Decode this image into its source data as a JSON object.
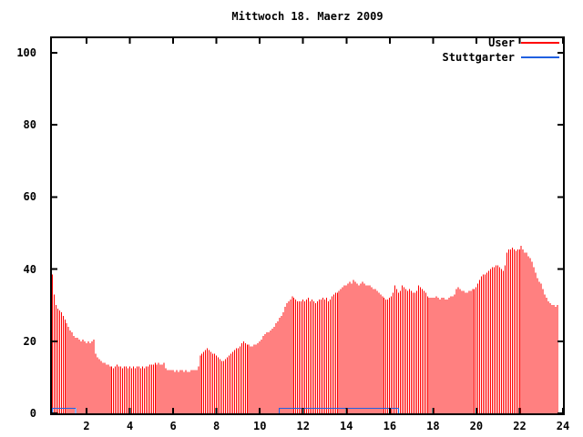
{
  "chart_data": {
    "type": "bar",
    "style_note": "gnuplot-style impulse plot, values per 5-minute sample over 24 hours",
    "title": "Mittwoch 18. Maerz 2009",
    "xlabel": "",
    "ylabel": "",
    "xlim": [
      0.4,
      24
    ],
    "ylim": [
      0,
      104
    ],
    "grid": false,
    "legend_position": "top-right-inside",
    "x_ticks": [
      2,
      4,
      6,
      8,
      10,
      12,
      14,
      16,
      18,
      20,
      22,
      24
    ],
    "y_ticks": [
      0,
      20,
      40,
      60,
      80,
      100
    ],
    "series": [
      {
        "name": "User",
        "color": "#ff0000",
        "style": "impulses",
        "start_hour": 0.4167,
        "interval_hours": 0.0833,
        "values": [
          38.5,
          33,
          30,
          29,
          28.5,
          28,
          27,
          26,
          25,
          24,
          23,
          22.5,
          21.5,
          21,
          21,
          20.5,
          20,
          20.5,
          20,
          19.5,
          20,
          19.5,
          20,
          20.5,
          16.5,
          15.5,
          15,
          14.5,
          14,
          14,
          13.5,
          13.5,
          13,
          13,
          12.5,
          13,
          13.5,
          13,
          13,
          12.5,
          13,
          13,
          12.5,
          13,
          12.5,
          13,
          12.5,
          13,
          13,
          12.5,
          13,
          12.5,
          13,
          13,
          13.5,
          13.5,
          13.5,
          14,
          13.5,
          14,
          13.5,
          13.5,
          14,
          12.5,
          12,
          12,
          12,
          12,
          11.5,
          12,
          11.5,
          12,
          12,
          11.5,
          12,
          11.5,
          11.5,
          12,
          12,
          12,
          12,
          13,
          16,
          16.5,
          17,
          17.5,
          18,
          17.5,
          17,
          16.5,
          16.5,
          16,
          15.5,
          15,
          14.5,
          14.5,
          15,
          15.5,
          16,
          16.5,
          17,
          17.5,
          18,
          18,
          18.5,
          19.5,
          20,
          19.5,
          19,
          19,
          18.5,
          18.5,
          19,
          19,
          19.5,
          20,
          20.5,
          21.5,
          22,
          22.5,
          22.5,
          23,
          23.5,
          24,
          25,
          25.5,
          26.5,
          27,
          28,
          29.5,
          30.5,
          31,
          31.5,
          32.5,
          32,
          31.5,
          31,
          31,
          31,
          31.5,
          31,
          31.5,
          32,
          31,
          31.5,
          31,
          30.5,
          31,
          31.5,
          31.5,
          32,
          31.5,
          32,
          31,
          31.5,
          32.5,
          33,
          33.5,
          33.5,
          34,
          34.5,
          35,
          35.5,
          35.5,
          36,
          36.5,
          36,
          37,
          36.5,
          36,
          35.5,
          36,
          36.5,
          36,
          35.5,
          35.5,
          35.5,
          35,
          34.5,
          34.5,
          34,
          33.5,
          33,
          32.5,
          32,
          31.5,
          31.5,
          32,
          32.5,
          33.5,
          35.5,
          34.5,
          33.5,
          34,
          35.5,
          35,
          34.5,
          34,
          34.5,
          34,
          33.5,
          33.5,
          34,
          35.5,
          35,
          34.5,
          34,
          33.5,
          32.5,
          32,
          32,
          32,
          32,
          32.5,
          32,
          31.5,
          32,
          32,
          31.5,
          31.5,
          32,
          32.5,
          32.5,
          33,
          34.5,
          35,
          34.5,
          34,
          34,
          33.5,
          33.5,
          34,
          34,
          34.5,
          34.5,
          35,
          36,
          37,
          38,
          38.5,
          38.5,
          39,
          39.5,
          40,
          40.5,
          40.5,
          41,
          41,
          40.5,
          40,
          39.5,
          41,
          44.5,
          45.5,
          45.5,
          46,
          45.5,
          45,
          45.5,
          45.5,
          46.5,
          45.5,
          44.5,
          44.5,
          43.5,
          43,
          42,
          40.5,
          39,
          37.5,
          36.5,
          36,
          34.5,
          33,
          32,
          31,
          30.5,
          30,
          30,
          29.5,
          30
        ]
      },
      {
        "name": "Stuttgarter",
        "color": "#2060e0",
        "style": "line",
        "value": 1.4,
        "segments_hours": [
          [
            0.4167,
            1.5
          ],
          [
            10.9,
            16.4
          ]
        ]
      }
    ]
  }
}
